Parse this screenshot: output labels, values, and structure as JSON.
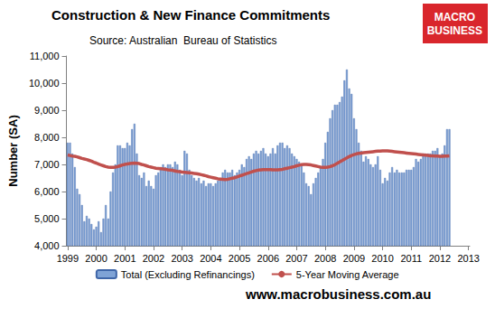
{
  "chart_data": {
    "type": "bar",
    "title": "Construction & New Finance Commitments",
    "subtitle": "Source: Australian  Bureau of Statistics",
    "y_label": "Number (SA)",
    "logo": [
      "MACRO",
      "BUSINESS"
    ],
    "footer": "www.macrobusiness.com.au",
    "grid": false,
    "legend": "bottom",
    "ylim": [
      4000,
      11000
    ],
    "yticks": [
      {
        "value": 4000,
        "label": "4,000"
      },
      {
        "value": 5000,
        "label": "5,000"
      },
      {
        "value": 6000,
        "label": "6,000"
      },
      {
        "value": 7000,
        "label": "7,000"
      },
      {
        "value": 8000,
        "label": "8,000"
      },
      {
        "value": 9000,
        "label": "9,000"
      },
      {
        "value": 10000,
        "label": "10,000"
      },
      {
        "value": 11000,
        "label": "11,000"
      }
    ],
    "categories": [
      "1999",
      null,
      null,
      null,
      null,
      null,
      null,
      null,
      null,
      null,
      null,
      null,
      "2000",
      null,
      null,
      null,
      null,
      null,
      null,
      null,
      null,
      null,
      null,
      null,
      "2001",
      null,
      null,
      null,
      null,
      null,
      null,
      null,
      null,
      null,
      null,
      null,
      "2002",
      null,
      null,
      null,
      null,
      null,
      null,
      null,
      null,
      null,
      null,
      null,
      "2003",
      null,
      null,
      null,
      null,
      null,
      null,
      null,
      null,
      null,
      null,
      null,
      "2004",
      null,
      null,
      null,
      null,
      null,
      null,
      null,
      null,
      null,
      null,
      null,
      "2005",
      null,
      null,
      null,
      null,
      null,
      null,
      null,
      null,
      null,
      null,
      null,
      "2006",
      null,
      null,
      null,
      null,
      null,
      null,
      null,
      null,
      null,
      null,
      null,
      "2007",
      null,
      null,
      null,
      null,
      null,
      null,
      null,
      null,
      null,
      null,
      null,
      "2008",
      null,
      null,
      null,
      null,
      null,
      null,
      null,
      null,
      null,
      null,
      null,
      "2009",
      null,
      null,
      null,
      null,
      null,
      null,
      null,
      null,
      null,
      null,
      null,
      "2010",
      null,
      null,
      null,
      null,
      null,
      null,
      null,
      null,
      null,
      null,
      null,
      "2011",
      null,
      null,
      null,
      null,
      null,
      null,
      null,
      null,
      null,
      null,
      null,
      "2012",
      null,
      null,
      null,
      null,
      null,
      null,
      null,
      null,
      null,
      null,
      null,
      "2013"
    ],
    "series": [
      {
        "name": "Total (Excluding Refinancings)",
        "type": "bar",
        "color": "#7f a3d6",
        "values": [
          7800,
          7800,
          7400,
          6900,
          6100,
          5900,
          5500,
          4900,
          5100,
          5000,
          4800,
          4600,
          4700,
          4900,
          4500,
          5000,
          5500,
          5000,
          6000,
          6700,
          7000,
          7700,
          7700,
          7600,
          7600,
          7800,
          7700,
          8300,
          8500,
          7400,
          6600,
          6500,
          6700,
          6200,
          6400,
          6200,
          6100,
          6600,
          6700,
          6900,
          7000,
          6900,
          7000,
          7000,
          6900,
          7100,
          7000,
          6800,
          6600,
          7500,
          7400,
          6800,
          6600,
          6500,
          6400,
          6500,
          6300,
          6400,
          6200,
          6300,
          6300,
          6200,
          6300,
          6400,
          6500,
          6700,
          6800,
          6700,
          6700,
          6800,
          6600,
          6700,
          6800,
          7000,
          6900,
          7200,
          7300,
          7200,
          7400,
          7500,
          7400,
          7500,
          7600,
          7400,
          7300,
          7400,
          7600,
          7400,
          7700,
          7800,
          7800,
          7600,
          7700,
          7600,
          7400,
          7300,
          7200,
          7100,
          7000,
          6700,
          6300,
          6200,
          5900,
          6300,
          6500,
          6700,
          6900,
          7200,
          7800,
          8200,
          8700,
          9000,
          9200,
          9200,
          9300,
          9500,
          10100,
          10500,
          9800,
          9600,
          8700,
          8300,
          7800,
          7500,
          7100,
          7300,
          7200,
          7000,
          6900,
          7000,
          7300,
          6800,
          6300,
          6500,
          6400,
          6700,
          6900,
          6700,
          6800,
          6700,
          6700,
          6700,
          6800,
          6800,
          6800,
          6900,
          7200,
          7100,
          7200,
          7400,
          7400,
          7400,
          7400,
          7500,
          7500,
          7600,
          7300,
          7400,
          7700,
          8300,
          8300,
          null,
          null,
          null,
          null,
          null,
          null,
          null,
          null
        ]
      },
      {
        "name": "5-Year Moving Average",
        "type": "line",
        "color": "#c0504d",
        "values": [
          7350,
          7330,
          7310,
          7300,
          7280,
          7250,
          7220,
          7200,
          7180,
          7150,
          7120,
          7080,
          7050,
          7010,
          6980,
          6950,
          6920,
          6900,
          6890,
          6890,
          6900,
          6920,
          6950,
          6980,
          7000,
          7020,
          7030,
          7040,
          7050,
          7040,
          7030,
          7000,
          6980,
          6950,
          6920,
          6900,
          6880,
          6860,
          6850,
          6840,
          6830,
          6820,
          6800,
          6790,
          6780,
          6760,
          6740,
          6730,
          6720,
          6710,
          6700,
          6690,
          6680,
          6670,
          6660,
          6640,
          6620,
          6600,
          6580,
          6550,
          6530,
          6510,
          6490,
          6470,
          6460,
          6450,
          6440,
          6450,
          6470,
          6490,
          6510,
          6540,
          6570,
          6600,
          6630,
          6660,
          6690,
          6720,
          6750,
          6770,
          6790,
          6800,
          6810,
          6810,
          6810,
          6810,
          6800,
          6800,
          6800,
          6810,
          6820,
          6840,
          6860,
          6880,
          6900,
          6920,
          6950,
          6970,
          6990,
          7000,
          7000,
          6990,
          6980,
          6960,
          6940,
          6920,
          6900,
          6890,
          6890,
          6900,
          6920,
          6950,
          6990,
          7040,
          7090,
          7140,
          7190,
          7240,
          7290,
          7330,
          7360,
          7390,
          7410,
          7420,
          7430,
          7440,
          7450,
          7460,
          7470,
          7480,
          7490,
          7490,
          7500,
          7500,
          7500,
          7490,
          7480,
          7470,
          7460,
          7450,
          7440,
          7430,
          7420,
          7410,
          7400,
          7390,
          7380,
          7370,
          7360,
          7350,
          7340,
          7330,
          7320,
          7320,
          7310,
          7310,
          7300,
          7300,
          7310,
          7310,
          7320,
          null,
          null,
          null,
          null,
          null,
          null,
          null,
          null
        ]
      }
    ]
  }
}
